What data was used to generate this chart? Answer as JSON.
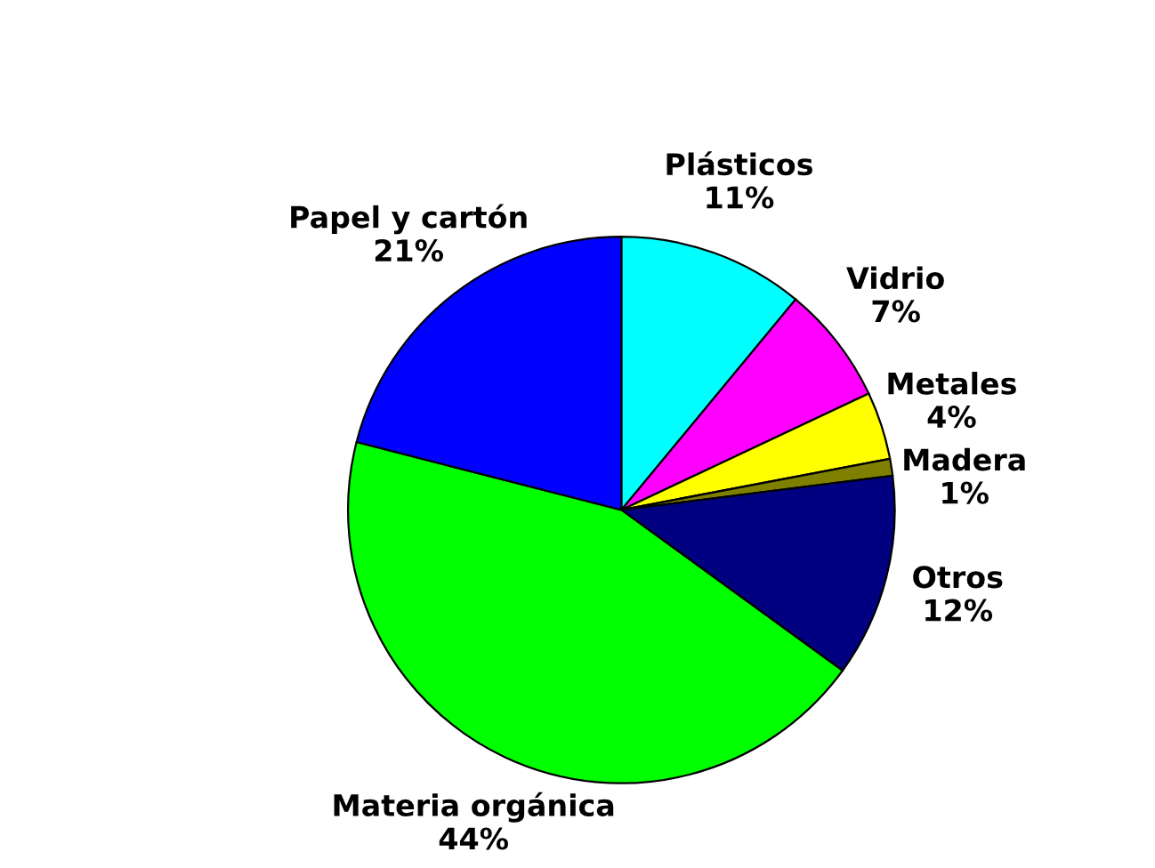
{
  "chart_data": {
    "type": "pie",
    "categories": [
      "Plásticos",
      "Vidrio",
      "Metales",
      "Madera",
      "Otros",
      "Materia orgánica",
      "Papel y cartón"
    ],
    "values": [
      11,
      7,
      4,
      1,
      12,
      44,
      21
    ],
    "colors": [
      "#00ffff",
      "#ff00ff",
      "#ffff00",
      "#808000",
      "#000080",
      "#00ff00",
      "#0000ff"
    ],
    "value_labels": [
      "11%",
      "7%",
      "4%",
      "1%",
      "12%",
      "44%",
      "21%"
    ],
    "legend": false
  }
}
